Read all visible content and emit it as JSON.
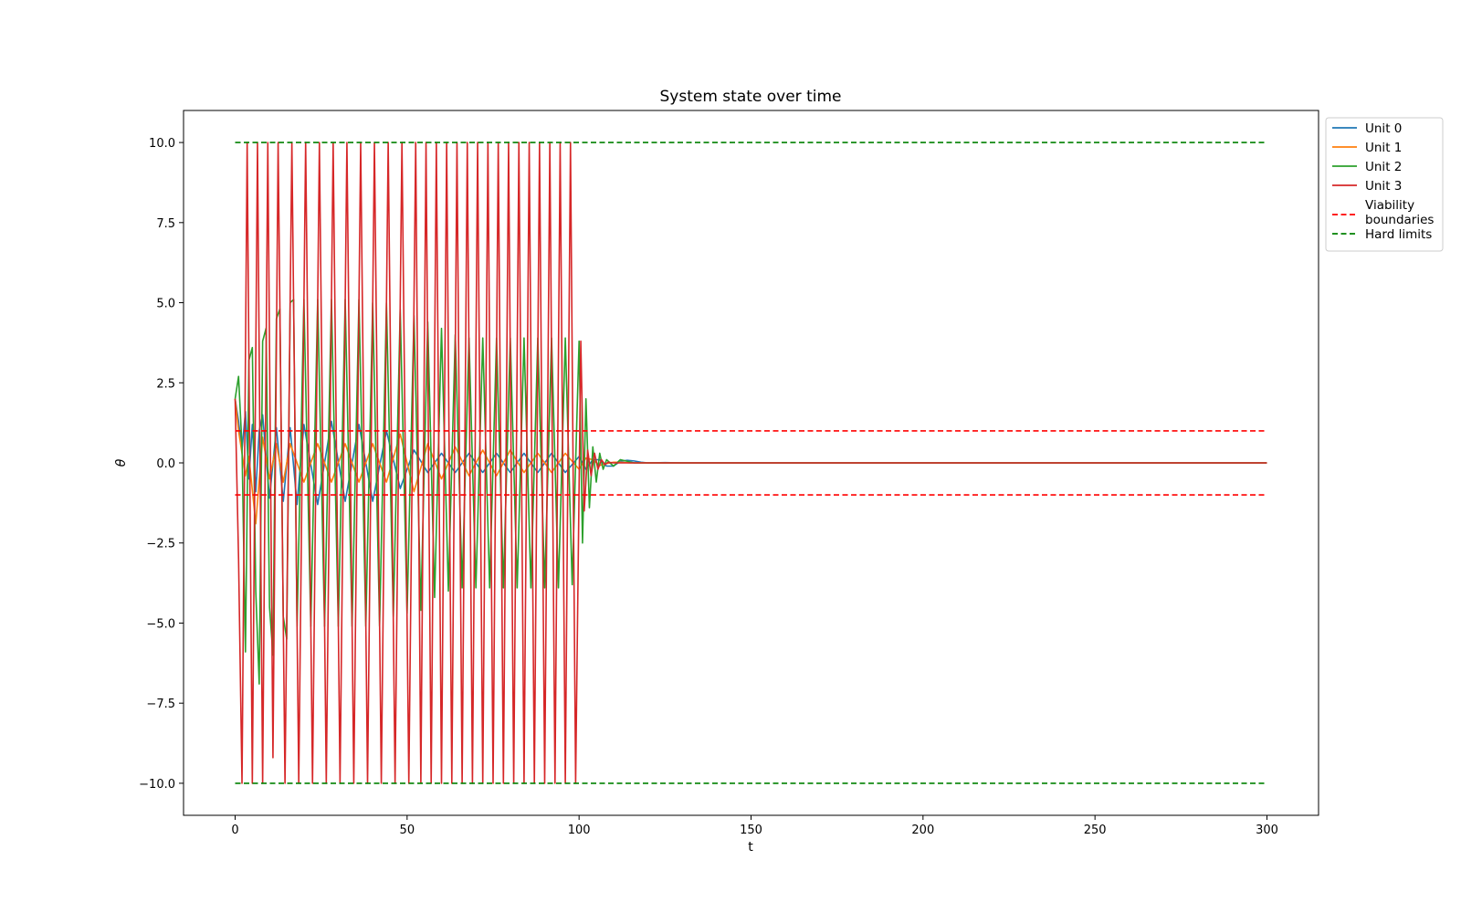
{
  "chart_data": {
    "type": "line",
    "title": "System state over time",
    "xlabel": "t",
    "ylabel": "θ",
    "xlim": [
      -15,
      315
    ],
    "ylim": [
      -11,
      11
    ],
    "xticks": [
      0,
      50,
      100,
      150,
      200,
      250,
      300
    ],
    "yticks": [
      -10.0,
      -7.5,
      -5.0,
      -2.5,
      0.0,
      2.5,
      5.0,
      7.5,
      10.0
    ],
    "x_tick_labels": [
      "0",
      "50",
      "100",
      "150",
      "200",
      "250",
      "300"
    ],
    "y_tick_labels": [
      "−10.0",
      "−7.5",
      "−5.0",
      "−2.5",
      "0.0",
      "2.5",
      "5.0",
      "7.5",
      "10.0"
    ],
    "grid": false,
    "legend_position": "outside-top-right",
    "series": [
      {
        "name": "Unit 0",
        "color": "#1f77b4",
        "style": "solid",
        "x": [
          0,
          1,
          2,
          3,
          4,
          5,
          6,
          7,
          8,
          10,
          12,
          14,
          16,
          18,
          20,
          24,
          28,
          32,
          36,
          40,
          44,
          48,
          52,
          56,
          60,
          64,
          68,
          72,
          76,
          80,
          84,
          88,
          92,
          96,
          100,
          102,
          104,
          106,
          108,
          110,
          112,
          114,
          116,
          118,
          120,
          125,
          130,
          140,
          150,
          200,
          250,
          300
        ],
        "y": [
          2.0,
          1.3,
          0.4,
          1.6,
          -0.5,
          1.2,
          -0.9,
          1.0,
          1.5,
          -1.1,
          1.1,
          -1.2,
          1.1,
          -1.3,
          1.2,
          -1.3,
          1.3,
          -1.2,
          1.2,
          -1.2,
          1.0,
          -0.8,
          0.4,
          -0.3,
          0.3,
          -0.3,
          0.3,
          -0.3,
          0.3,
          -0.3,
          0.3,
          -0.3,
          0.3,
          -0.3,
          0.2,
          -0.2,
          0.1,
          0.1,
          -0.1,
          -0.1,
          0.05,
          0.08,
          0.06,
          0.02,
          0.0,
          0.01,
          0.0,
          0.0,
          0.0,
          0.0,
          0.0,
          0.0
        ]
      },
      {
        "name": "Unit 1",
        "color": "#ff7f0e",
        "style": "solid",
        "x": [
          0,
          1,
          2,
          3,
          4,
          6,
          8,
          10,
          12,
          14,
          16,
          20,
          24,
          28,
          32,
          36,
          40,
          44,
          48,
          52,
          56,
          60,
          64,
          68,
          72,
          76,
          80,
          84,
          88,
          92,
          96,
          100,
          102,
          104,
          106,
          108,
          110,
          112,
          115,
          120,
          125,
          150,
          200,
          250,
          300
        ],
        "y": [
          2.0,
          1.0,
          0.3,
          -0.4,
          0.2,
          -1.9,
          0.8,
          -0.5,
          0.6,
          -0.6,
          0.6,
          -0.6,
          0.6,
          -0.6,
          0.6,
          -0.6,
          0.6,
          -0.6,
          0.9,
          -0.9,
          0.6,
          -0.5,
          0.5,
          -0.4,
          0.4,
          -0.4,
          0.4,
          -0.3,
          0.3,
          -0.3,
          0.3,
          -0.2,
          0.15,
          0.1,
          -0.08,
          -0.02,
          0.02,
          0.02,
          0.0,
          0.0,
          0.0,
          0.0,
          0.0,
          0.0,
          0.0
        ]
      },
      {
        "name": "Unit 2",
        "color": "#2ca02c",
        "style": "solid",
        "x": [
          0,
          1,
          2,
          3,
          4,
          5,
          6,
          7,
          8,
          9,
          10,
          11,
          12,
          13,
          14,
          15,
          16,
          17,
          18,
          20,
          22,
          24,
          26,
          28,
          30,
          32,
          34,
          36,
          38,
          40,
          42,
          44,
          46,
          48,
          50,
          52,
          54,
          56,
          58,
          60,
          62,
          64,
          66,
          68,
          70,
          72,
          74,
          76,
          78,
          80,
          82,
          84,
          86,
          88,
          90,
          92,
          94,
          96,
          98,
          100,
          101,
          102,
          103,
          104,
          105,
          106,
          107,
          108,
          110,
          112,
          114,
          116,
          118,
          120,
          125,
          150,
          200,
          250,
          300
        ],
        "y": [
          2.0,
          2.7,
          0.5,
          -5.9,
          3.2,
          3.6,
          -4.0,
          -6.9,
          3.8,
          4.2,
          -4.5,
          -6.0,
          4.5,
          4.8,
          -4.8,
          -5.5,
          5.0,
          5.1,
          -5.1,
          5.1,
          -5.1,
          5.1,
          -5.1,
          5.1,
          -5.1,
          5.1,
          -5.1,
          5.1,
          -5.1,
          5.0,
          -5.1,
          5.0,
          -4.8,
          4.8,
          -4.7,
          4.6,
          -4.6,
          4.4,
          -4.2,
          4.2,
          -4.0,
          4.0,
          -3.9,
          3.9,
          -3.9,
          3.9,
          -3.9,
          3.9,
          -3.9,
          3.9,
          -3.9,
          3.9,
          -3.9,
          3.9,
          -3.9,
          3.9,
          -3.9,
          3.9,
          -3.8,
          3.8,
          -2.5,
          2.0,
          -1.4,
          0.5,
          -0.6,
          0.3,
          -0.2,
          0.1,
          -0.1,
          0.1,
          0.05,
          0.0,
          0.0,
          0.0,
          0.0,
          0.0,
          0.0,
          0.0,
          0.0
        ]
      },
      {
        "name": "Unit 3",
        "color": "#d62728",
        "style": "solid",
        "x": [
          0,
          1.0,
          2.0,
          3.5,
          5.0,
          6.5,
          8.0,
          9.5,
          11.0,
          12.5,
          14.5,
          16.5,
          18.5,
          20.5,
          22.5,
          24.5,
          26.5,
          28.5,
          30.5,
          32.5,
          34.5,
          36.5,
          38.5,
          40.5,
          42.5,
          44.5,
          46.5,
          48.5,
          50.5,
          52.5,
          54.0,
          55.5,
          57.0,
          58.5,
          60.0,
          61.5,
          63.0,
          64.5,
          66.0,
          67.5,
          69.0,
          70.5,
          72.0,
          73.5,
          75.0,
          76.5,
          78.0,
          79.5,
          81.0,
          82.5,
          84.0,
          85.5,
          87.0,
          88.5,
          90.0,
          91.5,
          93.0,
          94.5,
          96.0,
          97.5,
          99.0,
          100.5,
          101.5,
          102.5,
          103.5,
          104.5,
          105.5,
          106.5,
          107.5,
          108.5,
          110,
          115,
          120,
          150,
          200,
          250,
          300
        ],
        "y": [
          2.0,
          -3.0,
          -10.0,
          10.0,
          -10.0,
          10.0,
          -10.0,
          10.0,
          -9.2,
          10.0,
          -10.0,
          10.0,
          -10.0,
          10.0,
          -10.0,
          10.0,
          -10.0,
          10.0,
          -10.0,
          10.0,
          -10.0,
          10.0,
          -10.0,
          10.0,
          -10.0,
          10.0,
          -10.0,
          10.0,
          -10.0,
          10.0,
          -10.0,
          10.0,
          -10.0,
          10.0,
          -10.0,
          10.0,
          -10.0,
          10.0,
          -10.0,
          10.0,
          -10.0,
          10.0,
          -10.0,
          10.0,
          -10.0,
          10.0,
          -10.0,
          10.0,
          -10.0,
          10.0,
          -10.0,
          10.0,
          -10.0,
          10.0,
          -10.0,
          10.0,
          -10.0,
          10.0,
          -10.0,
          10.0,
          -10.0,
          3.8,
          -1.5,
          0.4,
          -0.4,
          0.3,
          -0.2,
          0.1,
          -0.05,
          0.02,
          0.0,
          0.0,
          0.0,
          0.0,
          0.0,
          0.0,
          0.0
        ]
      },
      {
        "name": "Viability\nboundaries",
        "color": "#ff0000",
        "style": "dashed",
        "x": [
          0,
          300
        ],
        "y_lines": [
          1.0,
          -1.0
        ]
      },
      {
        "name": "Hard limits",
        "color": "#008000",
        "style": "dashed",
        "x": [
          0,
          300
        ],
        "y_lines": [
          10.0,
          -10.0
        ]
      }
    ]
  }
}
